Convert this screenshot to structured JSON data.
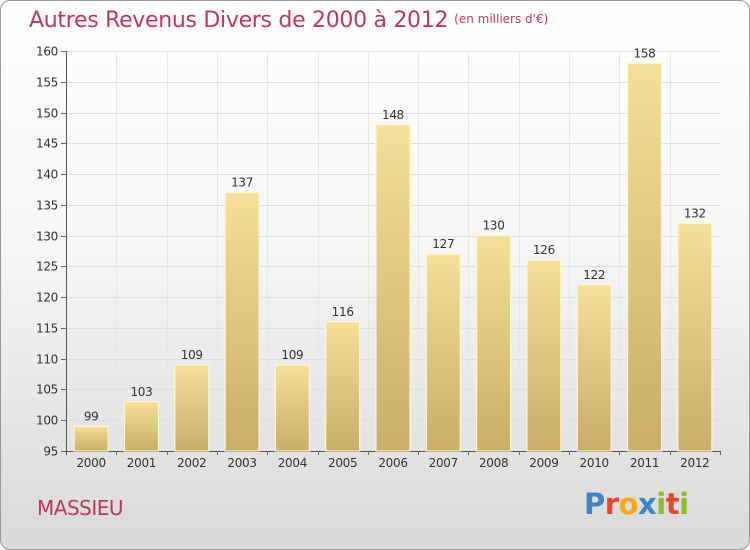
{
  "header": {
    "title": "Autres Revenus Divers de 2000 à 2012",
    "subtitle": "(en milliers d'€)"
  },
  "footer": {
    "commune": "MASSIEU",
    "logo_text": "Proxiti"
  },
  "colors": {
    "title": "#c0375a",
    "bar_light": "#f5df9a",
    "bar_dark": "#c9ad68",
    "logo_letters": [
      "#3f86c8",
      "#e8452c",
      "#f3a81d",
      "#3f86c8",
      "#8bbf2a",
      "#e8452c",
      "#8bbf2a"
    ]
  },
  "chart_data": {
    "type": "bar",
    "categories": [
      "2000",
      "2001",
      "2002",
      "2003",
      "2004",
      "2005",
      "2006",
      "2007",
      "2008",
      "2009",
      "2010",
      "2011",
      "2012"
    ],
    "values": [
      99,
      103,
      109,
      137,
      109,
      116,
      148,
      127,
      130,
      126,
      122,
      158,
      132
    ],
    "data_labels": [
      "99",
      "103",
      "109",
      "137",
      "109",
      "116",
      "148",
      "127",
      "130",
      "126",
      "122",
      "158",
      "132"
    ],
    "title": "Autres Revenus Divers de 2000 à 2012",
    "xlabel": "",
    "ylabel": "",
    "ylim": [
      95,
      160
    ],
    "yticks": [
      95,
      100,
      105,
      110,
      115,
      120,
      125,
      130,
      135,
      140,
      145,
      150,
      155,
      160
    ],
    "grid": true
  }
}
